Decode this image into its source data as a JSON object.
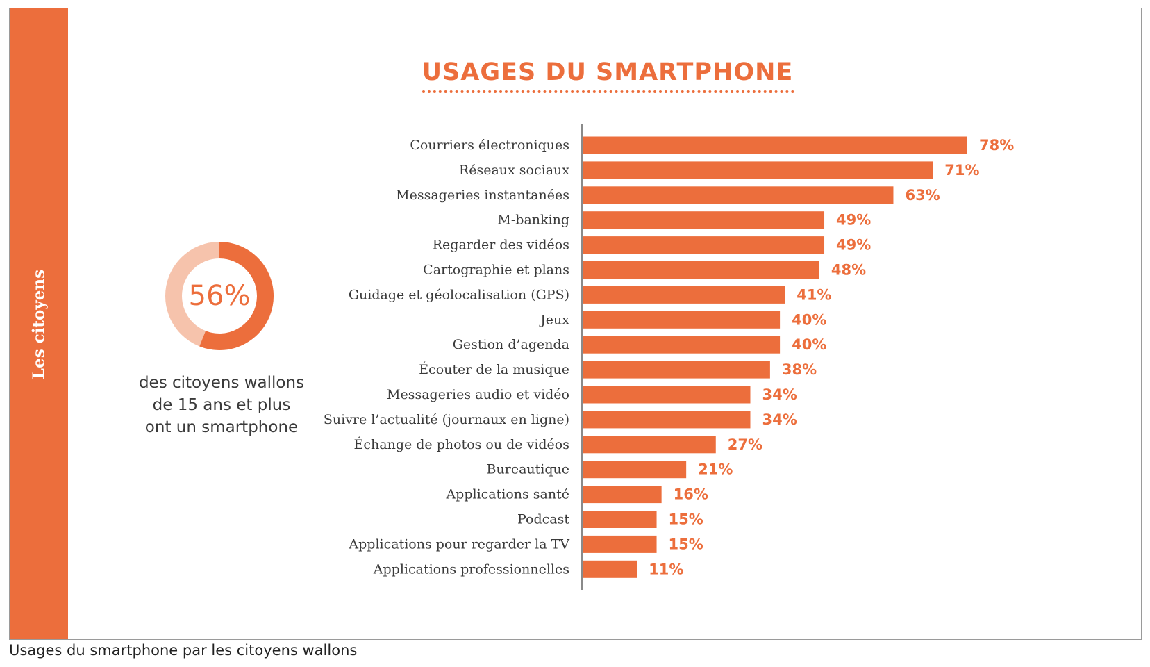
{
  "side_label": "Les citoyens",
  "donut": {
    "value_label": "56%",
    "fraction": 0.56,
    "caption_lines": [
      "des citoyens wallons",
      "de 15 ans et plus",
      "ont un smartphone"
    ]
  },
  "colors": {
    "accent": "#ec6e3c",
    "accent_light": "#f6c3ac",
    "text": "#3a3a3a",
    "axis": "#8a8a8a"
  },
  "chart_data": {
    "type": "bar",
    "orientation": "horizontal",
    "title": "USAGES DU SMARTPHONE",
    "xlim": [
      0,
      100
    ],
    "grid": false,
    "categories": [
      "Courriers électroniques",
      "Réseaux sociaux",
      "Messageries instantanées",
      "M-banking",
      "Regarder des vidéos",
      "Cartographie et plans",
      "Guidage et géolocalisation (GPS)",
      "Jeux",
      "Gestion d’agenda",
      "Écouter de la musique",
      "Messageries audio et vidéo",
      "Suivre l’actualité (journaux en ligne)",
      "Échange de photos ou de vidéos",
      "Bureautique",
      "Applications santé",
      "Podcast",
      "Applications pour regarder la TV",
      "Applications professionnelles"
    ],
    "values": [
      78,
      71,
      63,
      49,
      49,
      48,
      41,
      40,
      40,
      38,
      34,
      34,
      27,
      21,
      16,
      15,
      15,
      11
    ],
    "value_labels": [
      "78%",
      "71%",
      "63%",
      "49%",
      "49%",
      "48%",
      "41%",
      "40%",
      "40%",
      "38%",
      "34%",
      "34%",
      "27%",
      "21%",
      "16%",
      "15%",
      "15%",
      "11%"
    ]
  },
  "caption": "Usages du smartphone par les citoyens wallons"
}
